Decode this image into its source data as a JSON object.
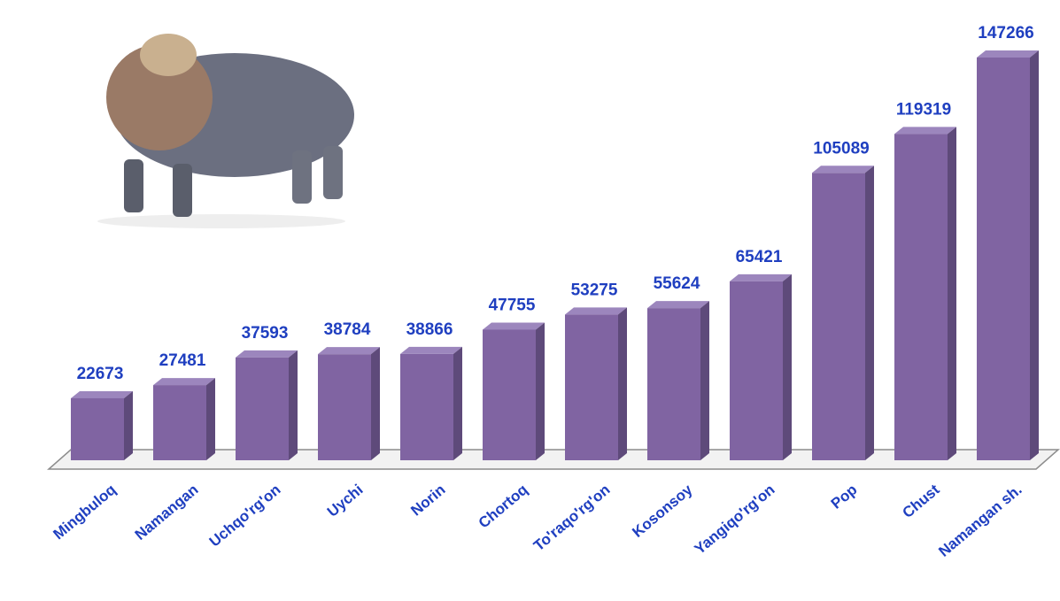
{
  "chart_data": {
    "type": "bar",
    "categories": [
      "Mingbuloq",
      "Namangan",
      "Uchqo'rg'on",
      "Uychi",
      "Norin",
      "Chortoq",
      "To'raqo'rg'on",
      "Kosonsoy",
      "Yangiqo'rg'on",
      "Pop",
      "Chust",
      "Namangan sh."
    ],
    "values": [
      22673,
      27481,
      37593,
      38784,
      38866,
      47755,
      53275,
      55624,
      65421,
      105089,
      119319,
      147266
    ],
    "color": "#8064a2"
  }
}
